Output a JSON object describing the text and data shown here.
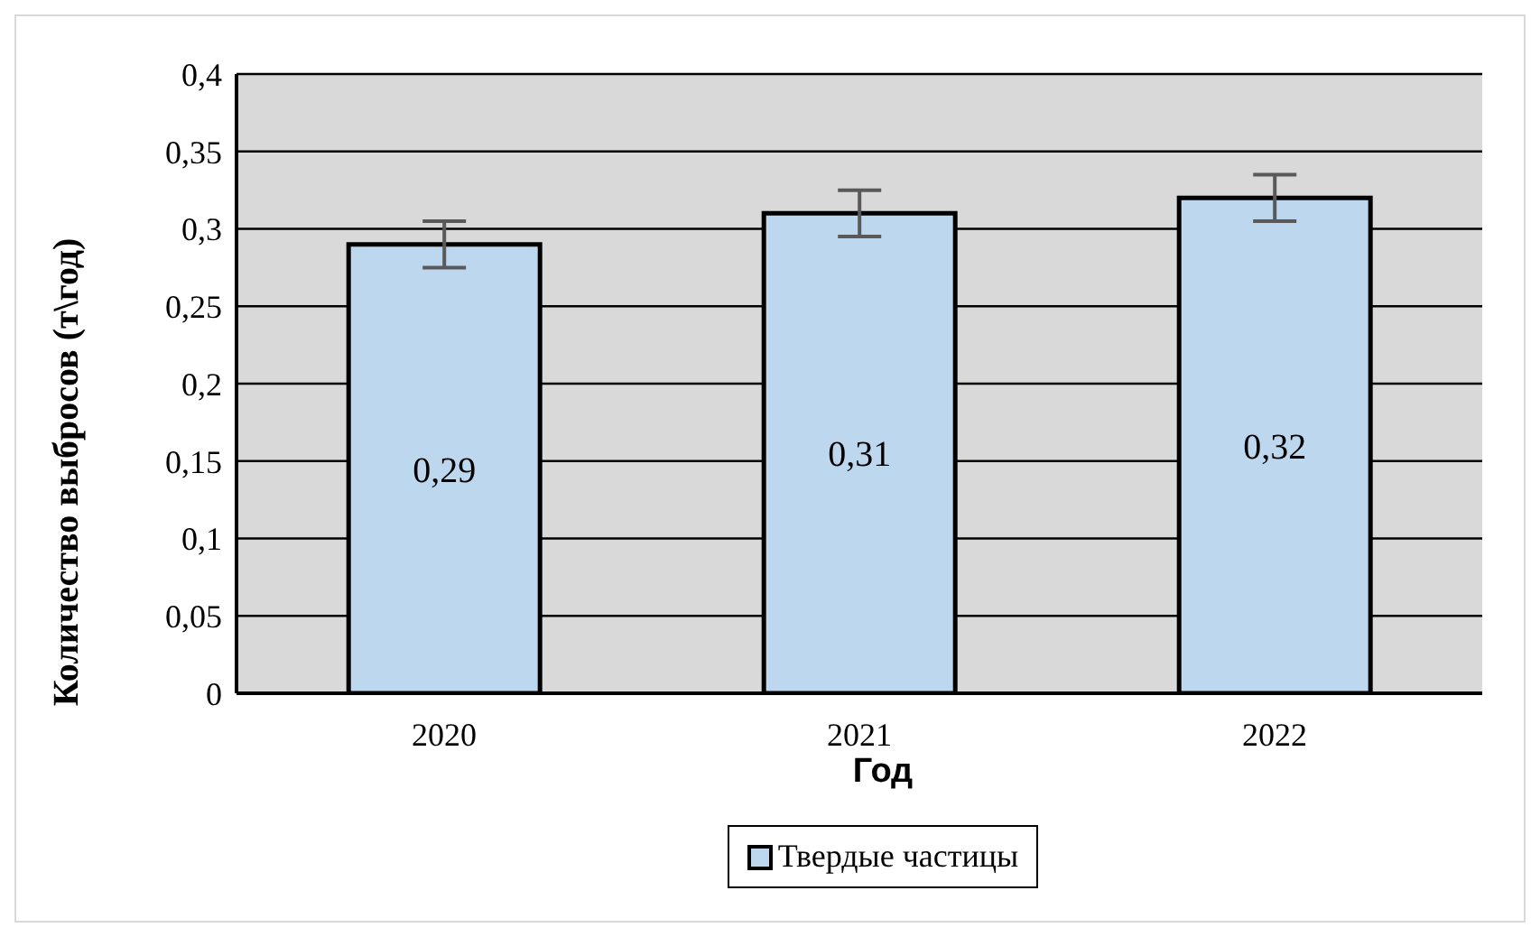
{
  "chart_data": {
    "type": "bar",
    "xlabel": "Год",
    "ylabel": "Количество выбросов (т\\год)",
    "categories": [
      "2020",
      "2021",
      "2022"
    ],
    "series": [
      {
        "name": "Твердые частицы",
        "color": "#bdd7ee",
        "values": [
          0.29,
          0.31,
          0.32
        ],
        "errors": [
          0.015,
          0.015,
          0.015
        ],
        "value_labels": [
          "0,29",
          "0,31",
          "0,32"
        ]
      }
    ],
    "ylim": [
      0,
      0.4
    ],
    "yticks": [
      0,
      {
        "value": 0.05,
        "label": "0,05"
      },
      {
        "value": 0.1,
        "label": "0,1"
      },
      {
        "value": 0.15,
        "label": "0,15"
      },
      {
        "value": 0.2,
        "label": "0,2"
      },
      {
        "value": 0.25,
        "label": "0,25"
      },
      {
        "value": 0.3,
        "label": "0,3"
      },
      {
        "value": 0.35,
        "label": "0,35"
      },
      {
        "value": 0.4,
        "label": "0,4"
      }
    ],
    "grid": "y",
    "legend": "bottom"
  }
}
